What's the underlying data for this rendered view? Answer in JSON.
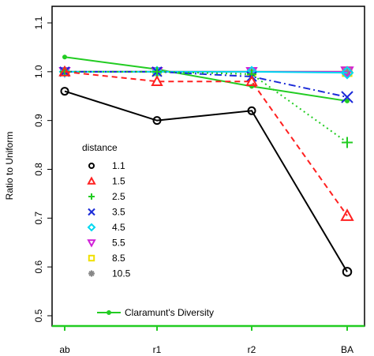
{
  "chart_data": {
    "type": "line",
    "ylabel": "Ratio to Uniform",
    "xlabel": "",
    "categories": [
      "ab",
      "r1",
      "r2",
      "BA"
    ],
    "ylim": [
      0.5,
      1.1
    ],
    "yticks": [
      "0.5",
      "0.6",
      "0.7",
      "0.8",
      "0.9",
      "1.0",
      "1.1"
    ],
    "grid": false,
    "legend_title": "distance",
    "legend_position": "left-middle",
    "series": [
      {
        "name": "1.1",
        "values": [
          0.96,
          0.9,
          0.92,
          0.59
        ],
        "color": "#000000",
        "marker": "o",
        "line": "solid"
      },
      {
        "name": "1.5",
        "values": [
          1.0,
          0.98,
          0.98,
          0.705
        ],
        "color": "#ff2020",
        "marker": "triangle",
        "line": "dashed"
      },
      {
        "name": "2.5",
        "values": [
          1.0,
          1.0,
          0.995,
          0.855
        ],
        "color": "#22cc22",
        "marker": "plus",
        "line": "dotted"
      },
      {
        "name": "3.5",
        "values": [
          1.0,
          1.0,
          0.99,
          0.948
        ],
        "color": "#1a2ad8",
        "marker": "x",
        "line": "dashdot"
      },
      {
        "name": "4.5",
        "values": [
          1.0,
          1.0,
          1.0,
          0.998
        ],
        "color": "#00d8f0",
        "marker": "diamond",
        "line": "solid"
      },
      {
        "name": "5.5",
        "values": [
          1.0,
          1.0,
          1.0,
          1.0
        ],
        "color": "#d020d8",
        "marker": "triangle-down",
        "line": "solid"
      },
      {
        "name": "8.5",
        "values": [
          1.0,
          1.0,
          1.0,
          1.0
        ],
        "color": "#f0e000",
        "marker": "square",
        "line": "solid"
      },
      {
        "name": "10.5",
        "values": [
          1.0,
          1.0,
          1.0,
          1.0
        ],
        "color": "#888888",
        "marker": "star",
        "line": "solid"
      }
    ],
    "extra_series": {
      "name": "Claramunt's Diversity",
      "values": [
        1.03,
        1.005,
        0.97,
        0.94
      ],
      "color": "#22cc22",
      "marker": "dot",
      "line": "solid"
    }
  }
}
